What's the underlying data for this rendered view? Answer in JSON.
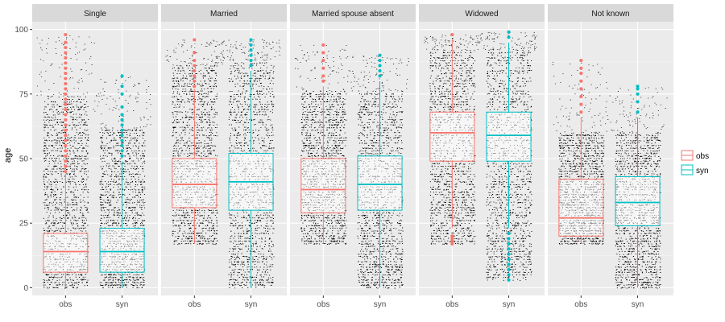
{
  "chart_data": {
    "type": "boxplot",
    "title": "",
    "xlabel": "",
    "ylabel": "age",
    "ylim": [
      -3,
      103
    ],
    "yticks": [
      0,
      25,
      50,
      75,
      100
    ],
    "groups": [
      "obs",
      "syn"
    ],
    "colors": {
      "obs": "#F8766D",
      "syn": "#00BFC4"
    },
    "legend": {
      "position": "right",
      "entries": [
        "obs",
        "syn"
      ]
    },
    "panels": [
      {
        "label": "Single",
        "boxes": [
          {
            "group": "obs",
            "min": 0,
            "q1": 6,
            "median": 14,
            "q3": 21,
            "max": 44,
            "outliers": [
              45,
              47,
              49,
              51,
              53,
              55,
              57,
              59,
              61,
              63,
              65,
              67,
              69,
              71,
              73,
              75,
              77,
              79,
              81,
              83,
              85,
              87,
              89,
              91,
              93,
              95,
              98
            ],
            "jitter": {
              "min": 0,
              "max": 98,
              "dense_max": 74
            }
          },
          {
            "group": "syn",
            "min": 0,
            "q1": 6,
            "median": 14,
            "q3": 23,
            "max": 49,
            "outliers": [
              51,
              53,
              55,
              57,
              59,
              61,
              63,
              65,
              67,
              70,
              75,
              78,
              82
            ],
            "jitter": {
              "min": 0,
              "max": 82,
              "dense_max": 62
            }
          }
        ]
      },
      {
        "label": "Married",
        "boxes": [
          {
            "group": "obs",
            "min": 17,
            "q1": 31,
            "median": 40,
            "q3": 50,
            "max": 77,
            "outliers": [
              78,
              80,
              82,
              84,
              86,
              88,
              91,
              96
            ],
            "jitter": {
              "min": 17,
              "max": 96,
              "dense_max": 86
            }
          },
          {
            "group": "syn",
            "min": 0,
            "q1": 30,
            "median": 41,
            "q3": 52,
            "max": 84,
            "outliers": [
              86,
              88,
              90,
              92,
              94,
              96
            ],
            "jitter": {
              "min": 0,
              "max": 96,
              "dense_max": 88
            }
          }
        ]
      },
      {
        "label": "Married spouse absent",
        "boxes": [
          {
            "group": "obs",
            "min": 17,
            "q1": 29,
            "median": 38,
            "q3": 50,
            "max": 78,
            "outliers": [
              80,
              82,
              85,
              88,
              91,
              94
            ],
            "jitter": {
              "min": 17,
              "max": 94,
              "dense_max": 76
            }
          },
          {
            "group": "syn",
            "min": 0,
            "q1": 30,
            "median": 40,
            "q3": 51,
            "max": 80,
            "outliers": [
              82,
              84,
              86,
              88,
              90
            ],
            "jitter": {
              "min": 0,
              "max": 90,
              "dense_max": 76
            }
          }
        ]
      },
      {
        "label": "Widowed",
        "boxes": [
          {
            "group": "obs",
            "min": 23,
            "q1": 49,
            "median": 60,
            "q3": 68,
            "max": 96,
            "outliers": [
              17,
              18,
              19,
              20,
              98
            ],
            "jitter": {
              "min": 17,
              "max": 98,
              "dense_max": 92
            }
          },
          {
            "group": "syn",
            "min": 23,
            "q1": 49,
            "median": 59,
            "q3": 68,
            "max": 95,
            "outliers": [
              3,
              5,
              7,
              9,
              11,
              13,
              15,
              17,
              19,
              21,
              97,
              99
            ],
            "jitter": {
              "min": 3,
              "max": 99,
              "dense_max": 92
            }
          }
        ]
      },
      {
        "label": "Not known",
        "boxes": [
          {
            "group": "obs",
            "min": 17,
            "q1": 20,
            "median": 27,
            "q3": 42,
            "max": 66,
            "outliers": [
              68,
              71,
              74,
              77,
              80,
              83,
              85,
              88
            ],
            "jitter": {
              "min": 17,
              "max": 88,
              "dense_max": 60
            }
          },
          {
            "group": "syn",
            "min": 0,
            "q1": 24,
            "median": 33,
            "q3": 43,
            "max": 66,
            "outliers": [
              68,
              72,
              75,
              77,
              78
            ],
            "jitter": {
              "min": 0,
              "max": 78,
              "dense_max": 60
            }
          }
        ]
      }
    ]
  }
}
